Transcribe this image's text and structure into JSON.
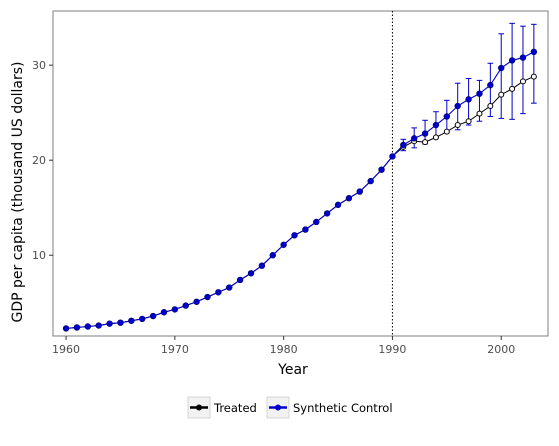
{
  "chart_data": {
    "type": "line",
    "xlabel": "Year",
    "ylabel": "GDP per capita (thousand US dollars)",
    "xlim": [
      1958.8,
      2004.3
    ],
    "ylim": [
      1.5,
      35.7
    ],
    "xticks": [
      1960,
      1970,
      1980,
      1990,
      2000
    ],
    "yticks": [
      10,
      20,
      30
    ],
    "vline": 1990,
    "grid": false,
    "legend_position": "bottom",
    "series": [
      {
        "name": "Treated",
        "color": "#000000",
        "marker": "hollow-circle",
        "x": [
          1960,
          1961,
          1962,
          1963,
          1964,
          1965,
          1966,
          1967,
          1968,
          1969,
          1970,
          1971,
          1972,
          1973,
          1974,
          1975,
          1976,
          1977,
          1978,
          1979,
          1980,
          1981,
          1982,
          1983,
          1984,
          1985,
          1986,
          1987,
          1988,
          1989,
          1990,
          1991,
          1992,
          1993,
          1994,
          1995,
          1996,
          1997,
          1998,
          1999,
          2000,
          2001,
          2002,
          2003
        ],
        "values": [
          2.3,
          2.4,
          2.5,
          2.6,
          2.8,
          2.9,
          3.1,
          3.3,
          3.6,
          4.0,
          4.3,
          4.7,
          5.1,
          5.6,
          6.1,
          6.6,
          7.4,
          8.1,
          8.9,
          10.0,
          11.1,
          12.1,
          12.7,
          13.5,
          14.4,
          15.3,
          16.0,
          16.7,
          17.8,
          19.0,
          20.4,
          21.4,
          22.0,
          21.9,
          22.4,
          23.0,
          23.7,
          24.1,
          24.9,
          25.7,
          26.9,
          27.5,
          28.3,
          28.8
        ]
      },
      {
        "name": "Synthetic Control",
        "color": "#0000cc",
        "marker": "filled-circle",
        "x": [
          1960,
          1961,
          1962,
          1963,
          1964,
          1965,
          1966,
          1967,
          1968,
          1969,
          1970,
          1971,
          1972,
          1973,
          1974,
          1975,
          1976,
          1977,
          1978,
          1979,
          1980,
          1981,
          1982,
          1983,
          1984,
          1985,
          1986,
          1987,
          1988,
          1989,
          1990,
          1991,
          1992,
          1993,
          1994,
          1995,
          1996,
          1997,
          1998,
          1999,
          2000,
          2001,
          2002,
          2003
        ],
        "values": [
          2.3,
          2.4,
          2.5,
          2.6,
          2.8,
          2.9,
          3.1,
          3.3,
          3.6,
          4.0,
          4.3,
          4.7,
          5.1,
          5.6,
          6.1,
          6.6,
          7.4,
          8.1,
          8.9,
          10.0,
          11.1,
          12.1,
          12.7,
          13.5,
          14.4,
          15.3,
          16.0,
          16.7,
          17.8,
          19.0,
          20.4,
          21.6,
          22.3,
          22.8,
          23.7,
          24.6,
          25.7,
          26.4,
          27.0,
          27.9,
          29.7,
          30.5,
          30.8,
          31.4
        ],
        "error_low": [
          null,
          null,
          null,
          null,
          null,
          null,
          null,
          null,
          null,
          null,
          null,
          null,
          null,
          null,
          null,
          null,
          null,
          null,
          null,
          null,
          null,
          null,
          null,
          null,
          null,
          null,
          null,
          null,
          null,
          null,
          null,
          21.0,
          21.3,
          21.7,
          22.3,
          22.9,
          23.2,
          23.7,
          24.1,
          24.6,
          24.4,
          24.3,
          24.9,
          26.0
        ],
        "error_high": [
          null,
          null,
          null,
          null,
          null,
          null,
          null,
          null,
          null,
          null,
          null,
          null,
          null,
          null,
          null,
          null,
          null,
          null,
          null,
          null,
          null,
          null,
          null,
          null,
          null,
          null,
          null,
          null,
          null,
          null,
          null,
          22.2,
          23.4,
          24.2,
          25.1,
          26.3,
          28.1,
          28.6,
          28.4,
          30.2,
          33.3,
          34.4,
          34.1,
          34.3
        ]
      }
    ]
  }
}
